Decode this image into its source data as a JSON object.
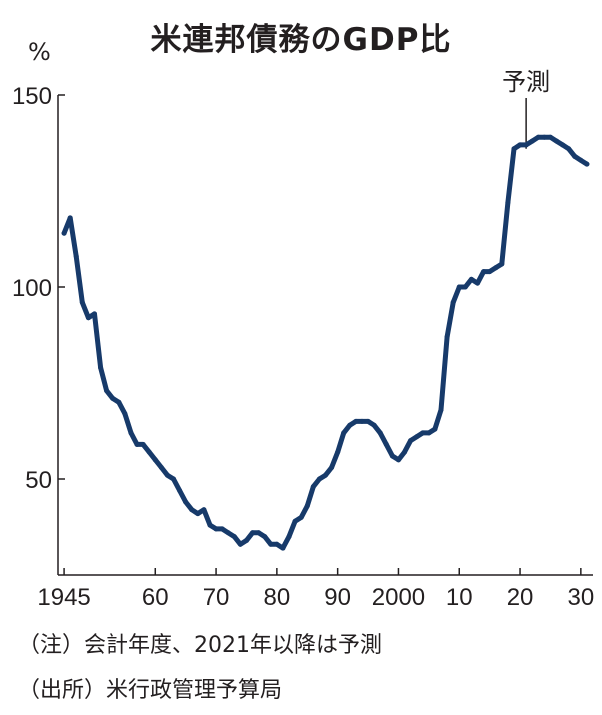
{
  "chart_data": {
    "type": "line",
    "title": "米連邦債務のGDP比",
    "unit": "%",
    "forecast_label": "予測",
    "x_ticks": [
      {
        "value": 1945,
        "label": "1945"
      },
      {
        "value": 1960,
        "label": "60"
      },
      {
        "value": 1970,
        "label": "70"
      },
      {
        "value": 1980,
        "label": "80"
      },
      {
        "value": 1990,
        "label": "90"
      },
      {
        "value": 2000,
        "label": "2000"
      },
      {
        "value": 2010,
        "label": "10"
      },
      {
        "value": 2020,
        "label": "20"
      },
      {
        "value": 2030,
        "label": "30"
      }
    ],
    "y_ticks": [
      {
        "value": 50,
        "label": "50"
      },
      {
        "value": 100,
        "label": "100"
      },
      {
        "value": 150,
        "label": "150"
      }
    ],
    "xlim": [
      1944,
      2032
    ],
    "ylim": [
      25,
      150
    ],
    "forecast_start": 2021,
    "line_color": "#173a6a",
    "series": [
      {
        "x": [
          1945,
          1946,
          1947,
          1948,
          1949,
          1950,
          1951,
          1952,
          1953,
          1954,
          1955,
          1956,
          1957,
          1958,
          1959,
          1960,
          1961,
          1962,
          1963,
          1964,
          1965,
          1966,
          1967,
          1968,
          1969,
          1970,
          1971,
          1972,
          1973,
          1974,
          1975,
          1976,
          1977,
          1978,
          1979,
          1980,
          1981,
          1982,
          1983,
          1984,
          1985,
          1986,
          1987,
          1988,
          1989,
          1990,
          1991,
          1992,
          1993,
          1994,
          1995,
          1996,
          1997,
          1998,
          1999,
          2000,
          2001,
          2002,
          2003,
          2004,
          2005,
          2006,
          2007,
          2008,
          2009,
          2010,
          2011,
          2012,
          2013,
          2014,
          2015,
          2016,
          2017,
          2018,
          2019,
          2020,
          2021,
          2022,
          2023,
          2024,
          2025,
          2026,
          2027,
          2028,
          2029,
          2030,
          2031
        ],
        "y": [
          114,
          118,
          108,
          96,
          92,
          93,
          79,
          73,
          71,
          70,
          67,
          62,
          59,
          59,
          57,
          55,
          53,
          51,
          50,
          47,
          44,
          42,
          41,
          42,
          38,
          37,
          37,
          36,
          35,
          33,
          34,
          36,
          36,
          35,
          33,
          33,
          32,
          35,
          39,
          40,
          43,
          48,
          50,
          51,
          53,
          57,
          62,
          64,
          65,
          65,
          65,
          64,
          62,
          59,
          56,
          55,
          57,
          60,
          61,
          62,
          62,
          63,
          68,
          87,
          96,
          100,
          100,
          102,
          101,
          104,
          104,
          105,
          106,
          122,
          136,
          137,
          137,
          138,
          139,
          139,
          139,
          138,
          137,
          136,
          134,
          133,
          132
        ]
      }
    ]
  },
  "notes": {
    "note1": "（注）会計年度、2021年以降は予測",
    "note2": "（出所）米行政管理予算局"
  }
}
